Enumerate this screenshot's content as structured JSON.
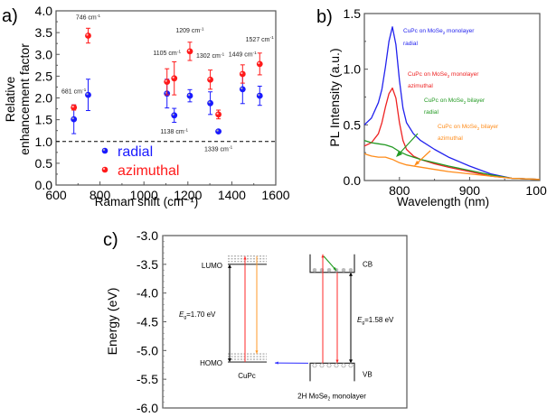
{
  "chart_data": [
    {
      "panel": "a)",
      "type": "scatter",
      "title": "",
      "xlabel": "Raman shift (cm⁻¹)",
      "ylabel_lines": [
        "Relative",
        "enhancement factor"
      ],
      "xlim": [
        600,
        1600
      ],
      "ylim": [
        0.0,
        4.0
      ],
      "xticks": [
        600,
        800,
        1000,
        1200,
        1400,
        1600
      ],
      "xtick_labels": [
        "600",
        "800",
        "1000",
        "1200",
        "1400",
        "1600"
      ],
      "yticks": [
        0.0,
        0.5,
        1.0,
        1.5,
        2.0,
        2.5,
        3.0,
        3.5,
        4.0
      ],
      "ytick_labels": [
        "0.0",
        "0.5",
        "1.0",
        "1.5",
        "2.0",
        "2.5",
        "3.0",
        "3.5",
        "4.0"
      ],
      "reference_line": {
        "y": 1.0,
        "style": "dashed"
      },
      "legend": {
        "position": "bottom-left",
        "entries": [
          {
            "label": "radial",
            "color": "#1a1aff"
          },
          {
            "label": "azimuthal",
            "color": "#ff1a1a"
          }
        ]
      },
      "series": [
        {
          "name": "radial",
          "color": "#1a1aff",
          "points": [
            {
              "x": 681,
              "y": 1.51,
              "err": 0.33
            },
            {
              "x": 746,
              "y": 2.07,
              "err": 0.36
            },
            {
              "x": 1105,
              "y": 2.1,
              "err": 0.33
            },
            {
              "x": 1138,
              "y": 1.6,
              "err": 0.16
            },
            {
              "x": 1209,
              "y": 2.05,
              "err": 0.14
            },
            {
              "x": 1302,
              "y": 1.88,
              "err": 0.26
            },
            {
              "x": 1339,
              "y": 1.23,
              "err": 0.0
            },
            {
              "x": 1449,
              "y": 2.2,
              "err": 0.33
            },
            {
              "x": 1527,
              "y": 2.05,
              "err": 0.22
            }
          ]
        },
        {
          "name": "azimuthal",
          "color": "#ff1a1a",
          "points": [
            {
              "x": 681,
              "y": 1.78,
              "err": 0.06
            },
            {
              "x": 746,
              "y": 3.43,
              "err": 0.17
            },
            {
              "x": 1105,
              "y": 2.37,
              "err": 0.3
            },
            {
              "x": 1138,
              "y": 2.45,
              "err": 0.38
            },
            {
              "x": 1209,
              "y": 3.07,
              "err": 0.21
            },
            {
              "x": 1302,
              "y": 2.42,
              "err": 0.22
            },
            {
              "x": 1339,
              "y": 1.62,
              "err": 0.1
            },
            {
              "x": 1449,
              "y": 2.55,
              "err": 0.21
            },
            {
              "x": 1527,
              "y": 2.78,
              "err": 0.25
            }
          ]
        }
      ],
      "annotations": [
        {
          "text": "681 cm⁻¹",
          "x": 681,
          "y": 2.1
        },
        {
          "text": "746 cm⁻¹",
          "x": 746,
          "y": 3.8
        },
        {
          "text": "1105 cm⁻¹",
          "x": 1105,
          "y": 2.98
        },
        {
          "text": "1138 cm⁻¹",
          "x": 1138,
          "y": 1.18
        },
        {
          "text": "1209 cm⁻¹",
          "x": 1209,
          "y": 3.5
        },
        {
          "text": "1302 cm⁻¹",
          "x": 1302,
          "y": 2.92
        },
        {
          "text": "1339 cm⁻¹",
          "x": 1339,
          "y": 0.78
        },
        {
          "text": "1449 cm⁻¹",
          "x": 1449,
          "y": 2.95
        },
        {
          "text": "1527 cm⁻¹",
          "x": 1527,
          "y": 3.3
        }
      ]
    },
    {
      "panel": "b)",
      "type": "line",
      "xlabel": "Wavelength (nm)",
      "ylabel": "PL Intensity (a.u.)",
      "xlim": [
        750,
        1000
      ],
      "ylim": [
        0.0,
        1.5
      ],
      "xticks": [
        800,
        900,
        1000
      ],
      "xtick_labels": [
        "800",
        "900",
        "1000"
      ],
      "yticks": [
        0.0,
        0.5,
        1.0,
        1.5
      ],
      "ytick_labels": [
        "0.0",
        "0.5",
        "1.0",
        "1.5"
      ],
      "series": [
        {
          "name": "CuPc on MoSe2 monolayer radial",
          "label_lines": [
            "CuPc on MoSe₂ monolayer",
            "radial"
          ],
          "color": "#2222ee",
          "x": [
            750,
            760,
            770,
            775,
            780,
            785,
            790,
            795,
            800,
            805,
            810,
            820,
            830,
            850,
            870,
            900,
            930,
            960,
            1000
          ],
          "y": [
            0.5,
            0.56,
            0.7,
            0.82,
            1.02,
            1.25,
            1.38,
            1.22,
            0.9,
            0.65,
            0.52,
            0.42,
            0.36,
            0.28,
            0.21,
            0.13,
            0.06,
            0.02,
            0.01
          ]
        },
        {
          "name": "CuPc on MoSe2 monolayer azimuthal",
          "label_lines": [
            "CuPc on MoSe₂ monolayer",
            "azimuthal"
          ],
          "color": "#ee2222",
          "x": [
            750,
            760,
            770,
            775,
            780,
            785,
            790,
            795,
            800,
            805,
            810,
            820,
            830,
            850,
            870,
            900,
            930,
            960,
            1000
          ],
          "y": [
            0.31,
            0.34,
            0.42,
            0.52,
            0.66,
            0.78,
            0.83,
            0.74,
            0.52,
            0.36,
            0.28,
            0.22,
            0.19,
            0.15,
            0.12,
            0.08,
            0.04,
            0.02,
            0.01
          ]
        },
        {
          "name": "CuPc on MoSe2 bilayer radial",
          "label_lines": [
            "CuPc on MoSe₂ bilayer",
            "radial"
          ],
          "color": "#229922",
          "x": [
            750,
            760,
            770,
            780,
            790,
            800,
            810,
            830,
            850,
            870,
            900,
            930,
            960,
            1000
          ],
          "y": [
            0.36,
            0.34,
            0.33,
            0.32,
            0.3,
            0.26,
            0.23,
            0.19,
            0.16,
            0.13,
            0.09,
            0.05,
            0.02,
            0.01
          ]
        },
        {
          "name": "CuPc on MoSe2 bilayer azimuthal",
          "label_lines": [
            "CuPc on MoSe₂ bilayer",
            "azimuthal"
          ],
          "color": "#ff8c1a",
          "x": [
            750,
            760,
            770,
            780,
            790,
            800,
            810,
            830,
            850,
            870,
            900,
            930,
            960,
            1000
          ],
          "y": [
            0.24,
            0.22,
            0.21,
            0.21,
            0.19,
            0.16,
            0.14,
            0.12,
            0.1,
            0.08,
            0.06,
            0.04,
            0.02,
            0.01
          ]
        }
      ]
    },
    {
      "panel": "c)",
      "type": "diagram",
      "ylabel": "Energy (eV)",
      "ylim": [
        -6.0,
        -3.0
      ],
      "yticks": [
        -3.0,
        -3.5,
        -4.0,
        -4.5,
        -5.0,
        -5.5,
        -6.0
      ],
      "ytick_labels": [
        "-3.0",
        "-3.5",
        "-4.0",
        "-4.5",
        "-5.0",
        "-5.5",
        "-6.0"
      ],
      "cupc": {
        "label": "CuPc",
        "lumo": {
          "label": "LUMO",
          "energy": -3.5
        },
        "homo": {
          "label": "HOMO",
          "energy": -5.2
        },
        "gap_label_symbol": "E",
        "gap_label_sub": "g",
        "gap_label_value": "=1.70 eV"
      },
      "mose2": {
        "label": "2H MoSe₂ monolayer",
        "cb": {
          "label": "CB",
          "energy": -3.64
        },
        "vb": {
          "label": "VB",
          "energy": -5.22
        },
        "gap_label_symbol": "E",
        "gap_label_sub": "g",
        "gap_label_value": "=1.58 eV"
      },
      "colors": {
        "excitation": "#ff2a2a",
        "emission": "#ff9a2a",
        "relaxation": "#1a9a1a",
        "transfer": "#2a2aff",
        "gap": "#000000"
      }
    }
  ]
}
